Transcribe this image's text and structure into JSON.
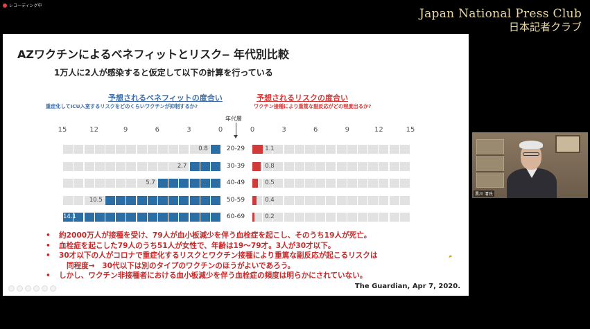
{
  "recording": {
    "label": "レコーディング中",
    "color": "#e0453a"
  },
  "brand": {
    "en": "Japan National Press Club",
    "jp": "日本記者クラブ"
  },
  "slide": {
    "title": "AZワクチンによるベネフィットとリスク‒ 年代別比較",
    "subtitle": "1万人に2人が感染すると仮定して以下の計算を行っている",
    "benefit_head": "予想されるベネフィットの度合い",
    "benefit_desc": "重症化してICU入室するリスクをどのくらいワクチンが抑制するか?",
    "risk_head": "予想されるリスクの度合い",
    "risk_desc": "ワクチン接種により重篤な副反応がどの程度出るか?",
    "age_axis_label": "年代層",
    "ticks_left": [
      "15",
      "12",
      "9",
      "6",
      "3",
      "0"
    ],
    "ticks_right": [
      "0",
      "3",
      "6",
      "9",
      "12",
      "15"
    ],
    "bullets": [
      {
        "text": "約2000万人が接種を受け、79人が血小板減少を伴う血栓症を起こし、そのうち19人が死亡。",
        "cont": ""
      },
      {
        "text": "血栓症を起こした79人のうち51人が女性で、年齢は19～79才。3人が30才以下。",
        "cont": ""
      },
      {
        "text": "30才以下の人がコロナで重症化するリスクとワクチン接種により重篤な副反応が起こるリスクは",
        "cont": "同程度→　30代以下は別のタイプのワクチンのほうがよいであろう。"
      },
      {
        "text": "しかし、ワクチン非接種者における血小板減少を伴う血栓症の頻度は明らかにされていない。",
        "cont": ""
      }
    ],
    "source": "The Guardian, Apr 7, 2020."
  },
  "chart_data": {
    "type": "bar",
    "categories": [
      "20-29",
      "30-39",
      "40-49",
      "50-59",
      "60-69"
    ],
    "axis_range": [
      0,
      15
    ],
    "series": [
      {
        "values": [
          0.8,
          2.7,
          5.7,
          10.5,
          14.1
        ],
        "color": "#2b6ea6"
      },
      {
        "values": [
          1.1,
          0.8,
          0.5,
          0.4,
          0.2
        ],
        "color": "#d23a3a"
      }
    ]
  },
  "video": {
    "name": "黒川 清氏"
  },
  "icons": [
    "record-icon",
    "toolbar-icons",
    "cursor-icon"
  ]
}
